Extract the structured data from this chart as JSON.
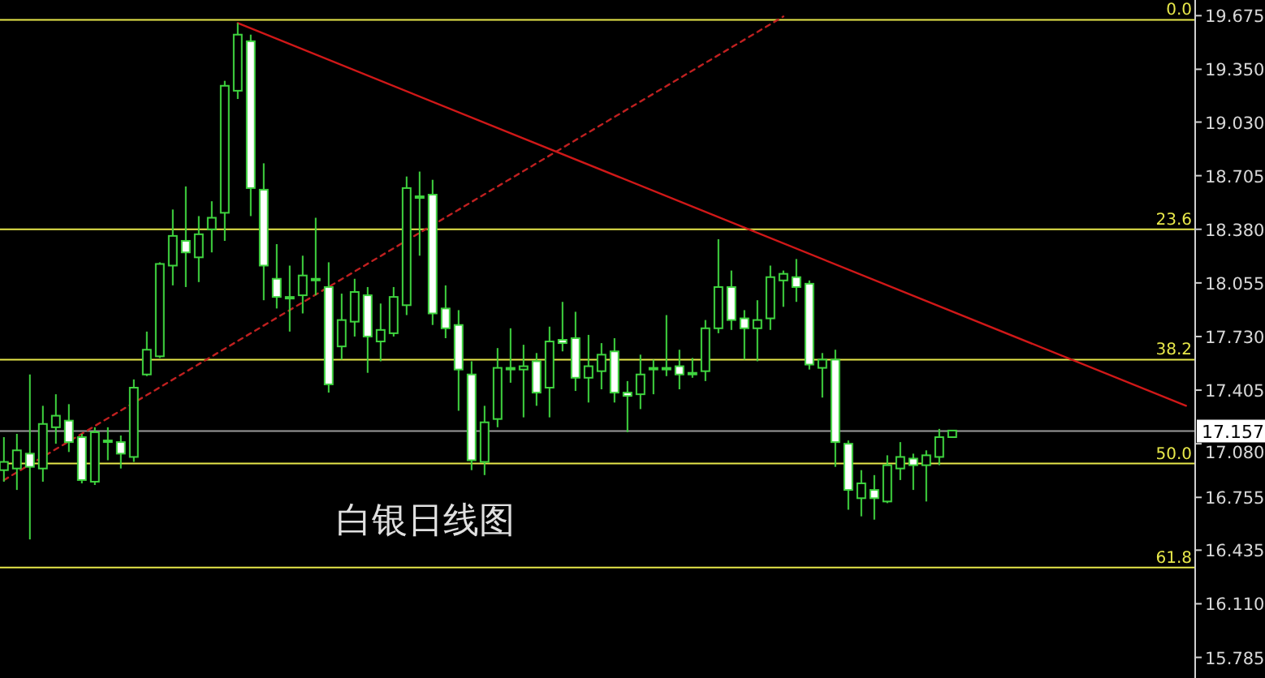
{
  "chart_data": {
    "type": "candlestick",
    "title": "白银日线图",
    "categories": [
      null,
      null,
      null,
      null,
      null,
      null,
      null,
      null,
      null,
      null,
      null,
      null,
      null,
      null,
      null,
      null,
      null,
      null,
      null,
      null,
      null,
      null,
      null,
      null,
      null,
      null,
      null,
      null,
      null,
      null,
      null,
      null,
      null,
      null,
      null,
      null,
      null,
      null,
      null,
      null,
      null,
      null,
      null,
      null,
      null,
      null,
      null,
      null,
      null,
      null,
      null,
      null,
      null,
      null,
      null,
      null,
      null,
      null,
      null,
      null,
      null,
      null,
      null,
      null,
      null,
      null,
      null,
      null,
      null,
      null,
      null,
      null,
      null,
      null,
      null,
      null,
      null,
      null,
      null,
      null,
      null,
      null,
      null,
      null,
      null,
      null,
      null,
      null,
      null,
      null,
      null,
      null
    ],
    "ohlc": [
      [
        16.92,
        17.12,
        16.85,
        16.97
      ],
      [
        16.93,
        17.14,
        16.8,
        17.04
      ],
      [
        17.02,
        17.5,
        16.5,
        16.94
      ],
      [
        16.93,
        17.31,
        16.85,
        17.2
      ],
      [
        17.18,
        17.38,
        17.08,
        17.25
      ],
      [
        17.22,
        17.32,
        17.03,
        17.09
      ],
      [
        17.12,
        17.14,
        16.84,
        16.86
      ],
      [
        16.85,
        17.18,
        16.83,
        17.15
      ],
      [
        17.1,
        17.18,
        16.98,
        17.1
      ],
      [
        17.09,
        17.13,
        16.93,
        17.02
      ],
      [
        17.0,
        17.47,
        16.97,
        17.42
      ],
      [
        17.5,
        17.76,
        17.49,
        17.65
      ],
      [
        17.61,
        18.18,
        17.6,
        18.17
      ],
      [
        18.16,
        18.5,
        18.04,
        18.34
      ],
      [
        18.31,
        18.64,
        18.03,
        18.24
      ],
      [
        18.21,
        18.46,
        18.06,
        18.35
      ],
      [
        18.38,
        18.55,
        18.24,
        18.45
      ],
      [
        18.48,
        19.28,
        18.31,
        19.25
      ],
      [
        19.22,
        19.63,
        19.17,
        19.56
      ],
      [
        19.52,
        19.56,
        18.46,
        18.63
      ],
      [
        18.62,
        18.78,
        17.95,
        18.16
      ],
      [
        18.08,
        18.29,
        17.9,
        17.97
      ],
      [
        17.97,
        18.16,
        17.76,
        17.97
      ],
      [
        17.98,
        18.22,
        17.87,
        18.1
      ],
      [
        18.08,
        18.45,
        17.98,
        18.08
      ],
      [
        18.03,
        18.18,
        17.39,
        17.44
      ],
      [
        17.67,
        17.99,
        17.59,
        17.83
      ],
      [
        17.82,
        18.08,
        17.73,
        18.0
      ],
      [
        17.98,
        18.03,
        17.51,
        17.73
      ],
      [
        17.7,
        17.93,
        17.58,
        17.77
      ],
      [
        17.75,
        18.03,
        17.73,
        17.97
      ],
      [
        17.92,
        18.7,
        17.86,
        18.63
      ],
      [
        18.57,
        18.73,
        18.22,
        18.58
      ],
      [
        18.59,
        18.68,
        17.8,
        17.87
      ],
      [
        17.9,
        18.04,
        17.72,
        17.78
      ],
      [
        17.8,
        17.89,
        17.28,
        17.53
      ],
      [
        17.5,
        17.58,
        16.92,
        16.98
      ],
      [
        16.97,
        17.31,
        16.89,
        17.21
      ],
      [
        17.23,
        17.66,
        17.18,
        17.54
      ],
      [
        17.54,
        17.78,
        17.45,
        17.54
      ],
      [
        17.53,
        17.68,
        17.24,
        17.55
      ],
      [
        17.58,
        17.63,
        17.31,
        17.39
      ],
      [
        17.42,
        17.79,
        17.24,
        17.7
      ],
      [
        17.71,
        17.94,
        17.64,
        17.69
      ],
      [
        17.72,
        17.88,
        17.4,
        17.48
      ],
      [
        17.48,
        17.74,
        17.33,
        17.55
      ],
      [
        17.52,
        17.69,
        17.41,
        17.62
      ],
      [
        17.64,
        17.72,
        17.33,
        17.39
      ],
      [
        17.39,
        17.46,
        17.15,
        17.37
      ],
      [
        17.38,
        17.62,
        17.29,
        17.5
      ],
      [
        17.54,
        17.59,
        17.38,
        17.54
      ],
      [
        17.54,
        17.86,
        17.49,
        17.54
      ],
      [
        17.55,
        17.65,
        17.41,
        17.5
      ],
      [
        17.51,
        17.6,
        17.48,
        17.51
      ],
      [
        17.52,
        17.83,
        17.46,
        17.78
      ],
      [
        17.78,
        18.32,
        17.75,
        18.03
      ],
      [
        18.03,
        18.13,
        17.77,
        17.83
      ],
      [
        17.84,
        17.89,
        17.59,
        17.78
      ],
      [
        17.78,
        17.95,
        17.58,
        17.83
      ],
      [
        17.84,
        18.16,
        17.77,
        18.09
      ],
      [
        18.07,
        18.13,
        17.91,
        18.11
      ],
      [
        18.09,
        18.2,
        17.94,
        18.03
      ],
      [
        18.05,
        18.07,
        17.53,
        17.56
      ],
      [
        17.54,
        17.63,
        17.36,
        17.59
      ],
      [
        17.59,
        17.65,
        16.94,
        17.09
      ],
      [
        17.08,
        17.1,
        16.68,
        16.8
      ],
      [
        16.75,
        16.92,
        16.64,
        16.84
      ],
      [
        16.8,
        16.89,
        16.62,
        16.75
      ],
      [
        16.73,
        17.01,
        16.72,
        16.95
      ],
      [
        16.93,
        17.09,
        16.86,
        17.0
      ],
      [
        16.99,
        17.02,
        16.8,
        16.95
      ],
      [
        16.95,
        17.04,
        16.73,
        17.01
      ],
      [
        17.0,
        17.17,
        16.95,
        17.12
      ],
      [
        17.12,
        17.16,
        17.12,
        17.16
      ],
      null,
      null,
      null,
      null,
      null,
      null,
      null,
      null,
      null,
      null,
      null,
      null,
      null,
      null,
      null,
      null,
      null,
      null
    ],
    "color": "#3fd43f",
    "series": [
      {
        "type": "line",
        "values": [
          null,
          null,
          null,
          null,
          null,
          null,
          null,
          null,
          null,
          null,
          null,
          null,
          null,
          null,
          null,
          null,
          null,
          null,
          19.63,
          null,
          null,
          null,
          null,
          null,
          null,
          null,
          null,
          null,
          null,
          null,
          null,
          null,
          null,
          null,
          null,
          null,
          null,
          null,
          null,
          null,
          null,
          null,
          null,
          null,
          null,
          null,
          null,
          null,
          null,
          null,
          null,
          null,
          null,
          null,
          null,
          null,
          null,
          null,
          null,
          null,
          null,
          null,
          null,
          null,
          null,
          null,
          null,
          null,
          null,
          null,
          null,
          null,
          null,
          null,
          null,
          null,
          null,
          null,
          null,
          null,
          null,
          null,
          null,
          null,
          null,
          null,
          null,
          null,
          null,
          null,
          null,
          17.31
        ],
        "color": "#d01818",
        "line_style": "solid"
      },
      {
        "type": "line",
        "values": [
          16.86,
          null,
          null,
          null,
          null,
          null,
          null,
          null,
          null,
          null,
          null,
          null,
          null,
          null,
          null,
          null,
          null,
          null,
          null,
          null,
          null,
          null,
          null,
          null,
          null,
          null,
          null,
          null,
          null,
          null,
          null,
          null,
          null,
          null,
          null,
          null,
          null,
          null,
          null,
          null,
          null,
          null,
          null,
          null,
          null,
          null,
          null,
          null,
          null,
          null,
          null,
          null,
          null,
          null,
          null,
          null,
          null,
          null,
          null,
          null,
          19.67,
          null,
          null,
          null,
          null,
          null,
          null,
          null,
          null,
          null,
          null,
          null,
          null,
          null,
          null,
          null,
          null,
          null,
          null,
          null,
          null,
          null,
          null,
          null,
          null,
          null,
          null,
          null,
          null,
          null,
          null,
          null
        ],
        "color": "#c02020",
        "line_style": "dashed"
      }
    ],
    "ylim": [
      15.66,
      19.77
    ],
    "yticks": [
      {
        "value": 19.675,
        "label": "19.675"
      },
      {
        "value": 19.35,
        "label": "19.350"
      },
      {
        "value": 19.03,
        "label": "19.030"
      },
      {
        "value": 18.705,
        "label": "18.705"
      },
      {
        "value": 18.38,
        "label": "18.380"
      },
      {
        "value": 18.055,
        "label": "18.055"
      },
      {
        "value": 17.73,
        "label": "17.730"
      },
      {
        "value": 17.405,
        "label": "17.405"
      },
      {
        "value": 17.08,
        "label": "17.080"
      },
      {
        "value": 16.755,
        "label": "16.755"
      },
      {
        "value": 16.435,
        "label": "16.435"
      },
      {
        "value": 16.11,
        "label": "16.110"
      },
      {
        "value": 15.785,
        "label": "15.785"
      }
    ],
    "ref_lines": [
      {
        "axis": "y",
        "value": 19.65,
        "color": "#e8e84a"
      },
      {
        "axis": "y",
        "value": 18.38,
        "color": "#e8e84a"
      },
      {
        "axis": "y",
        "value": 17.59,
        "color": "#e8e84a"
      },
      {
        "axis": "y",
        "value": 16.96,
        "color": "#e8e84a"
      },
      {
        "axis": "y",
        "value": 16.33,
        "color": "#e8e84a"
      },
      {
        "axis": "y",
        "value": 17.157,
        "label": "17.157",
        "color": "#9a9a9a"
      }
    ],
    "annotations": [
      {
        "text": "0.0",
        "y": 19.65
      },
      {
        "text": "23.6",
        "y": 18.38
      },
      {
        "text": "38.2",
        "y": 17.59
      },
      {
        "text": "50.0",
        "y": 16.96
      },
      {
        "text": "61.8",
        "y": 16.33
      }
    ],
    "grid": false
  }
}
